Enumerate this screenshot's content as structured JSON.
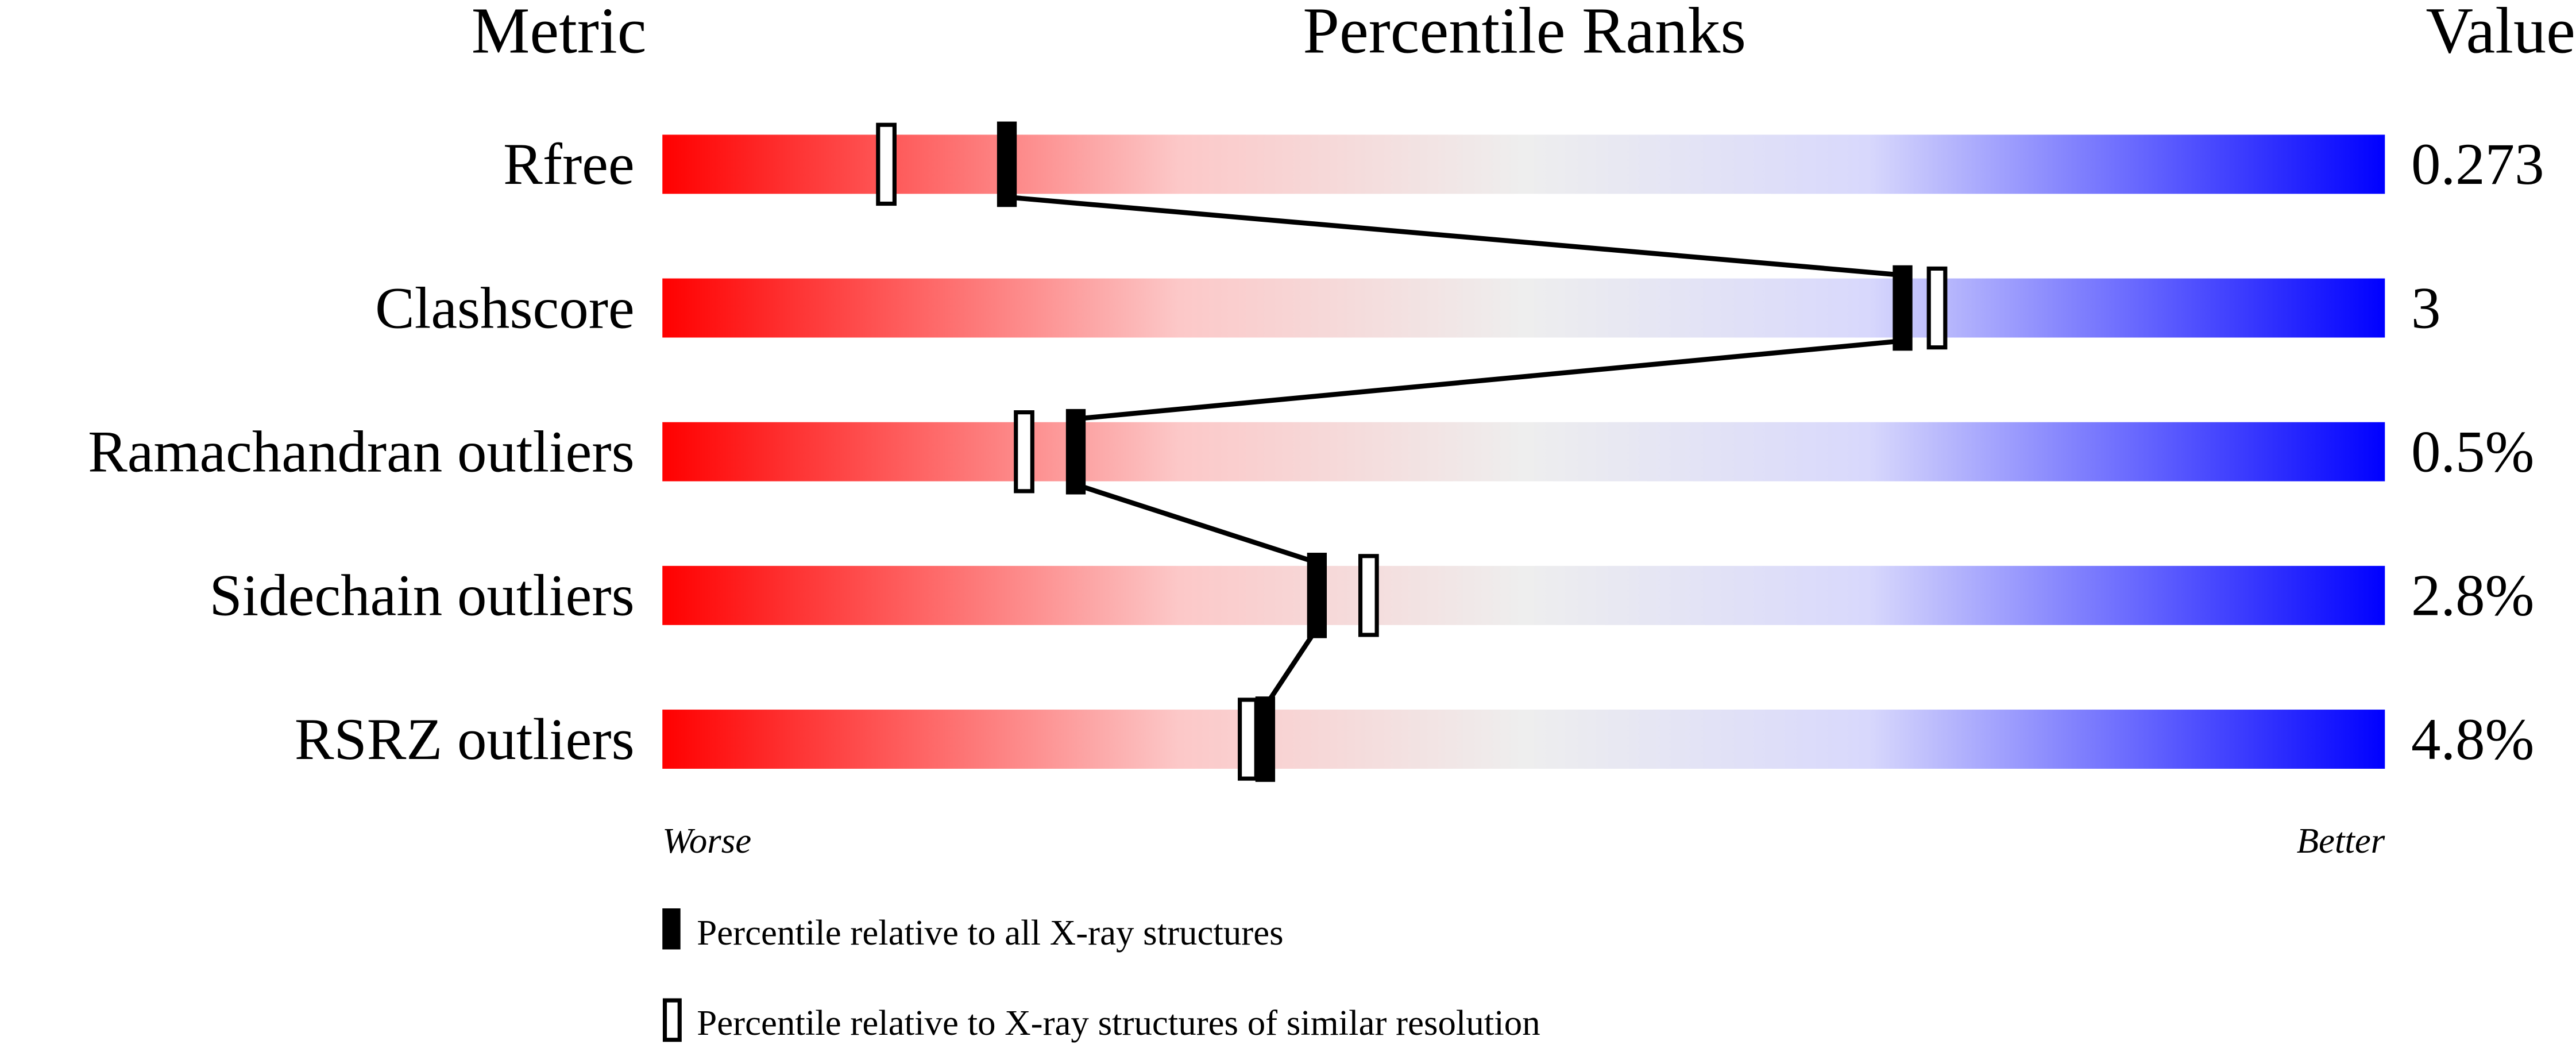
{
  "chart_data": {
    "type": "percentile-slider",
    "headers": {
      "metric": "Metric",
      "ranks": "Percentile Ranks",
      "value": "Value"
    },
    "xlim": [
      0,
      100
    ],
    "axis": {
      "left": "Worse",
      "right": "Better"
    },
    "metrics": [
      {
        "name": "Rfree",
        "value": "0.273",
        "percentile_all": 20,
        "percentile_similar": 13
      },
      {
        "name": "Clashscore",
        "value": "3",
        "percentile_all": 72,
        "percentile_similar": 74
      },
      {
        "name": "Ramachandran outliers",
        "value": "0.5%",
        "percentile_all": 24,
        "percentile_similar": 21
      },
      {
        "name": "Sidechain outliers",
        "value": "2.8%",
        "percentile_all": 38,
        "percentile_similar": 41
      },
      {
        "name": "RSRZ outliers",
        "value": "4.8%",
        "percentile_all": 35,
        "percentile_similar": 34
      }
    ],
    "legend": {
      "filled": "Percentile relative to all X-ray structures",
      "open": "Percentile relative to X-ray structures of similar resolution"
    },
    "colors": {
      "worse": "#ff0000",
      "middle": "#eeeeee",
      "better": "#0000ff",
      "marker": "#000000"
    }
  }
}
